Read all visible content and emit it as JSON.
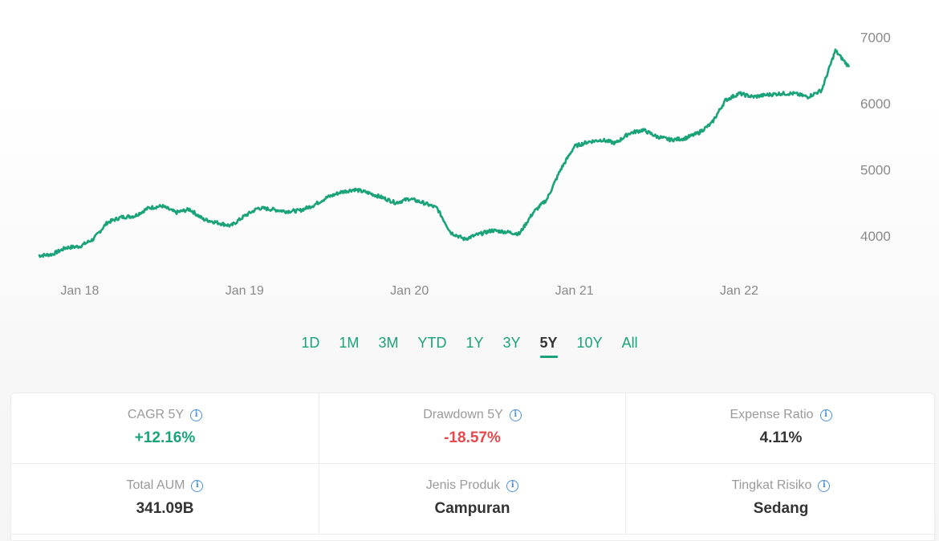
{
  "chart_data": {
    "type": "line",
    "x_ticks": [
      "Jan 18",
      "Jan 19",
      "Jan 20",
      "Jan 21",
      "Jan 22"
    ],
    "y_ticks": [
      4000,
      5000,
      6000,
      7000
    ],
    "ylim": [
      3500,
      7200
    ],
    "xlim": [
      "2017-10",
      "2022-10"
    ],
    "color": "#1aa27a",
    "grid": false,
    "series": [
      {
        "x": [
          "2017-10",
          "2017-11",
          "2017-12",
          "2018-01",
          "2018-02",
          "2018-03",
          "2018-04",
          "2018-05",
          "2018-06",
          "2018-07",
          "2018-08",
          "2018-09",
          "2018-10",
          "2018-11",
          "2018-12",
          "2019-01",
          "2019-02",
          "2019-03",
          "2019-04",
          "2019-05",
          "2019-06",
          "2019-07",
          "2019-08",
          "2019-09",
          "2019-10",
          "2019-11",
          "2019-12",
          "2020-01",
          "2020-02",
          "2020-03",
          "2020-04",
          "2020-05",
          "2020-06",
          "2020-07",
          "2020-08",
          "2020-09",
          "2020-10",
          "2020-11",
          "2020-12",
          "2021-01",
          "2021-02",
          "2021-03",
          "2021-04",
          "2021-05",
          "2021-06",
          "2021-07",
          "2021-08",
          "2021-09",
          "2021-10",
          "2021-11",
          "2021-12",
          "2022-01",
          "2022-02",
          "2022-03",
          "2022-04",
          "2022-05",
          "2022-06",
          "2022-07",
          "2022-08",
          "2022-09"
        ],
        "values": [
          3700,
          3720,
          3820,
          3840,
          3950,
          4200,
          4280,
          4300,
          4420,
          4450,
          4350,
          4400,
          4250,
          4200,
          4150,
          4300,
          4420,
          4400,
          4370,
          4380,
          4460,
          4580,
          4660,
          4700,
          4650,
          4580,
          4500,
          4560,
          4500,
          4420,
          4050,
          3950,
          4020,
          4080,
          4060,
          4030,
          4350,
          4550,
          5000,
          5350,
          5420,
          5450,
          5400,
          5550,
          5600,
          5500,
          5450,
          5470,
          5550,
          5700,
          6050,
          6150,
          6100,
          6130,
          6150,
          6150,
          6100,
          6200,
          6800,
          6550
        ]
      }
    ]
  },
  "ranges": {
    "r1d": "1D",
    "r1m": "1M",
    "r3m": "3M",
    "rytd": "YTD",
    "r1y": "1Y",
    "r3y": "3Y",
    "r5y": "5Y",
    "r10y": "10Y",
    "rall": "All",
    "active": "5Y"
  },
  "stats": {
    "cagr": {
      "label": "CAGR 5Y",
      "value": "+12.16%"
    },
    "drawdown": {
      "label": "Drawdown 5Y",
      "value": "-18.57%"
    },
    "expense": {
      "label": "Expense Ratio",
      "value": "4.11%"
    },
    "aum": {
      "label": "Total AUM",
      "value": "341.09B"
    },
    "jenis": {
      "label": "Jenis Produk",
      "value": "Campuran"
    },
    "risiko": {
      "label": "Tingkat Risiko",
      "value": "Sedang"
    }
  },
  "colors": {
    "accent": "#1aa27a",
    "negative": "#e5484d",
    "info": "#4a90d9"
  },
  "icons": {
    "info": "info-circle-icon"
  }
}
